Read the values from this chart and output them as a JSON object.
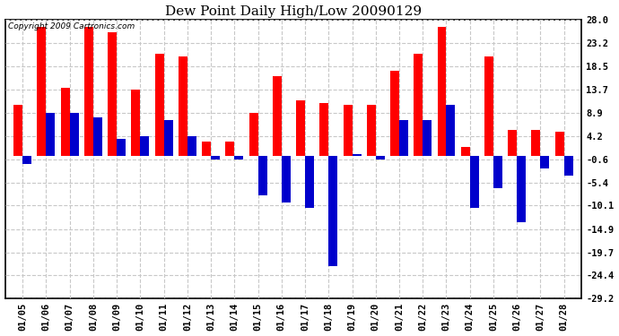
{
  "title": "Dew Point Daily High/Low 20090129",
  "copyright": "Copyright 2009 Cartronics.com",
  "dates": [
    "01/05",
    "01/06",
    "01/07",
    "01/08",
    "01/09",
    "01/10",
    "01/11",
    "01/12",
    "01/13",
    "01/14",
    "01/15",
    "01/16",
    "01/17",
    "01/18",
    "01/19",
    "01/20",
    "01/21",
    "01/22",
    "01/23",
    "01/24",
    "01/25",
    "01/26",
    "01/27",
    "01/28"
  ],
  "highs": [
    10.5,
    26.5,
    14.0,
    26.5,
    25.5,
    13.7,
    21.0,
    20.5,
    3.0,
    3.0,
    8.9,
    16.5,
    11.5,
    11.0,
    10.5,
    10.5,
    17.5,
    21.0,
    26.5,
    2.0,
    20.5,
    5.5,
    5.5,
    5.0
  ],
  "lows": [
    -1.5,
    8.9,
    8.9,
    8.0,
    3.5,
    4.2,
    7.5,
    4.2,
    -0.6,
    -0.6,
    -8.0,
    -9.5,
    -10.5,
    -22.5,
    0.5,
    -0.6,
    7.5,
    7.5,
    10.5,
    -10.5,
    -6.5,
    -13.5,
    -2.5,
    -4.0
  ],
  "high_color": "#ff0000",
  "low_color": "#0000cc",
  "bg_color": "#ffffff",
  "plot_bg_color": "#ffffff",
  "grid_color": "#c8c8c8",
  "yticks": [
    28.0,
    23.2,
    18.5,
    13.7,
    8.9,
    4.2,
    -0.6,
    -5.4,
    -10.1,
    -14.9,
    -19.7,
    -24.4,
    -29.2
  ],
  "ylim": [
    -29.2,
    28.0
  ],
  "bar_width": 0.38,
  "title_fontsize": 11,
  "tick_fontsize": 7.5,
  "copyright_fontsize": 6.5
}
